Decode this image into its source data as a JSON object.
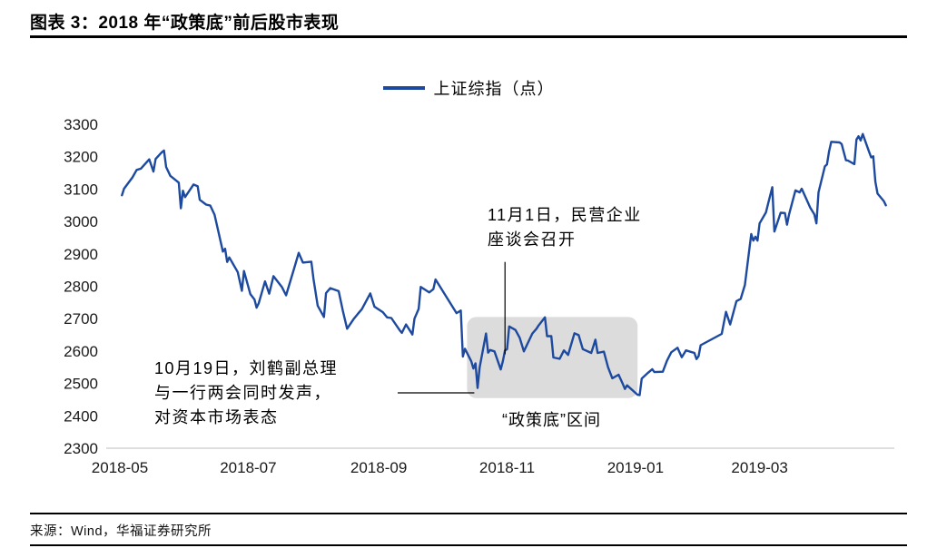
{
  "header": {
    "title": "图表 3：2018 年“政策底”前后股市表现"
  },
  "chart": {
    "legend": "上证综指（点）"
  },
  "annotations": {
    "nov1": "11月1日，民营企业\n座谈会召开",
    "oct19": "10月19日，刘鹤副总理\n与一行两会同时发声，\n对资本市场表态",
    "region_label": "“政策底”区间"
  },
  "footer": {
    "source": "来源：Wind，华福证券研究所"
  },
  "chart_data": {
    "type": "line",
    "title": "图表 3：2018 年“政策底”前后股市表现",
    "series_name": "上证综指（点）",
    "line_color": "#1d4a9f",
    "ylim": [
      2300,
      3300
    ],
    "yticks": [
      3300,
      3200,
      3100,
      3000,
      2900,
      2800,
      2700,
      2600,
      2500,
      2400,
      2300
    ],
    "xticks": [
      "2018-05",
      "2018-07",
      "2018-09",
      "2018-11",
      "2019-01",
      "2019-03"
    ],
    "x_domain": [
      "2018-04-28",
      "2019-05-04"
    ],
    "grid": false,
    "legend_position": "top-center",
    "highlight_region": {
      "x_start": "2018-10-13",
      "x_end": "2019-01-02",
      "y_bottom": 2455,
      "y_top": 2705,
      "color": "#dcdcdc",
      "label": "“政策底”区间"
    },
    "connectors": {
      "nov1": {
        "x_date": "2018-10-31",
        "y_from": 2875,
        "y_to": 2590
      },
      "oct19": {
        "y_value": 2471
      }
    },
    "points": [
      [
        "2018-05-02",
        3081
      ],
      [
        "2018-05-03",
        3101
      ],
      [
        "2018-05-07",
        3136
      ],
      [
        "2018-05-09",
        3159
      ],
      [
        "2018-05-11",
        3163
      ],
      [
        "2018-05-15",
        3192
      ],
      [
        "2018-05-17",
        3154
      ],
      [
        "2018-05-18",
        3193
      ],
      [
        "2018-05-21",
        3214
      ],
      [
        "2018-05-22",
        3219
      ],
      [
        "2018-05-23",
        3168
      ],
      [
        "2018-05-25",
        3141
      ],
      [
        "2018-05-29",
        3120
      ],
      [
        "2018-05-30",
        3041
      ],
      [
        "2018-05-31",
        3095
      ],
      [
        "2018-06-01",
        3075
      ],
      [
        "2018-06-05",
        3114
      ],
      [
        "2018-06-07",
        3109
      ],
      [
        "2018-06-08",
        3067
      ],
      [
        "2018-06-11",
        3052
      ],
      [
        "2018-06-13",
        3049
      ],
      [
        "2018-06-15",
        3021
      ],
      [
        "2018-06-19",
        2907
      ],
      [
        "2018-06-20",
        2916
      ],
      [
        "2018-06-21",
        2875
      ],
      [
        "2018-06-22",
        2889
      ],
      [
        "2018-06-26",
        2844
      ],
      [
        "2018-06-28",
        2786
      ],
      [
        "2018-06-29",
        2847
      ],
      [
        "2018-07-02",
        2776
      ],
      [
        "2018-07-04",
        2759
      ],
      [
        "2018-07-05",
        2734
      ],
      [
        "2018-07-06",
        2747
      ],
      [
        "2018-07-09",
        2815
      ],
      [
        "2018-07-11",
        2777
      ],
      [
        "2018-07-13",
        2831
      ],
      [
        "2018-07-17",
        2798
      ],
      [
        "2018-07-19",
        2772
      ],
      [
        "2018-07-23",
        2859
      ],
      [
        "2018-07-25",
        2903
      ],
      [
        "2018-07-27",
        2873
      ],
      [
        "2018-07-31",
        2876
      ],
      [
        "2018-08-01",
        2824
      ],
      [
        "2018-08-03",
        2740
      ],
      [
        "2018-08-06",
        2705
      ],
      [
        "2018-08-07",
        2779
      ],
      [
        "2018-08-09",
        2794
      ],
      [
        "2018-08-13",
        2785
      ],
      [
        "2018-08-15",
        2723
      ],
      [
        "2018-08-17",
        2669
      ],
      [
        "2018-08-20",
        2698
      ],
      [
        "2018-08-22",
        2714
      ],
      [
        "2018-08-24",
        2729
      ],
      [
        "2018-08-28",
        2778
      ],
      [
        "2018-08-30",
        2737
      ],
      [
        "2018-09-03",
        2720
      ],
      [
        "2018-09-05",
        2704
      ],
      [
        "2018-09-07",
        2702
      ],
      [
        "2018-09-11",
        2664
      ],
      [
        "2018-09-12",
        2656
      ],
      [
        "2018-09-14",
        2682
      ],
      [
        "2018-09-17",
        2651
      ],
      [
        "2018-09-18",
        2700
      ],
      [
        "2018-09-20",
        2730
      ],
      [
        "2018-09-21",
        2798
      ],
      [
        "2018-09-25",
        2781
      ],
      [
        "2018-09-27",
        2791
      ],
      [
        "2018-09-28",
        2821
      ],
      [
        "2018-10-08",
        2717
      ],
      [
        "2018-10-10",
        2725
      ],
      [
        "2018-10-11",
        2583
      ],
      [
        "2018-10-12",
        2607
      ],
      [
        "2018-10-15",
        2568
      ],
      [
        "2018-10-16",
        2546
      ],
      [
        "2018-10-17",
        2562
      ],
      [
        "2018-10-18",
        2486
      ],
      [
        "2018-10-19",
        2550
      ],
      [
        "2018-10-22",
        2654
      ],
      [
        "2018-10-23",
        2595
      ],
      [
        "2018-10-24",
        2603
      ],
      [
        "2018-10-26",
        2599
      ],
      [
        "2018-10-29",
        2543
      ],
      [
        "2018-10-30",
        2568
      ],
      [
        "2018-10-31",
        2602
      ],
      [
        "2018-11-01",
        2606
      ],
      [
        "2018-11-02",
        2676
      ],
      [
        "2018-11-05",
        2665
      ],
      [
        "2018-11-07",
        2641
      ],
      [
        "2018-11-09",
        2599
      ],
      [
        "2018-11-13",
        2654
      ],
      [
        "2018-11-15",
        2669
      ],
      [
        "2018-11-16",
        2679
      ],
      [
        "2018-11-19",
        2704
      ],
      [
        "2018-11-20",
        2646
      ],
      [
        "2018-11-22",
        2646
      ],
      [
        "2018-11-23",
        2580
      ],
      [
        "2018-11-26",
        2576
      ],
      [
        "2018-11-28",
        2602
      ],
      [
        "2018-11-30",
        2588
      ],
      [
        "2018-12-03",
        2655
      ],
      [
        "2018-12-05",
        2649
      ],
      [
        "2018-12-07",
        2606
      ],
      [
        "2018-12-11",
        2594
      ],
      [
        "2018-12-13",
        2635
      ],
      [
        "2018-12-14",
        2594
      ],
      [
        "2018-12-17",
        2598
      ],
      [
        "2018-12-19",
        2550
      ],
      [
        "2018-12-21",
        2516
      ],
      [
        "2018-12-24",
        2527
      ],
      [
        "2018-12-26",
        2498
      ],
      [
        "2018-12-27",
        2483
      ],
      [
        "2018-12-28",
        2494
      ],
      [
        "2019-01-02",
        2465
      ],
      [
        "2019-01-03",
        2464
      ],
      [
        "2019-01-04",
        2515
      ],
      [
        "2019-01-07",
        2533
      ],
      [
        "2019-01-09",
        2544
      ],
      [
        "2019-01-10",
        2535
      ],
      [
        "2019-01-14",
        2536
      ],
      [
        "2019-01-16",
        2570
      ],
      [
        "2019-01-18",
        2596
      ],
      [
        "2019-01-21",
        2610
      ],
      [
        "2019-01-23",
        2581
      ],
      [
        "2019-01-25",
        2602
      ],
      [
        "2019-01-29",
        2594
      ],
      [
        "2019-01-30",
        2575
      ],
      [
        "2019-01-31",
        2584
      ],
      [
        "2019-02-01",
        2618
      ],
      [
        "2019-02-11",
        2653
      ],
      [
        "2019-02-13",
        2721
      ],
      [
        "2019-02-15",
        2682
      ],
      [
        "2019-02-18",
        2754
      ],
      [
        "2019-02-20",
        2761
      ],
      [
        "2019-02-22",
        2804
      ],
      [
        "2019-02-25",
        2961
      ],
      [
        "2019-02-26",
        2941
      ],
      [
        "2019-02-27",
        2953
      ],
      [
        "2019-02-28",
        2941
      ],
      [
        "2019-03-01",
        2994
      ],
      [
        "2019-03-04",
        3028
      ],
      [
        "2019-03-05",
        3054
      ],
      [
        "2019-03-07",
        3106
      ],
      [
        "2019-03-08",
        2969
      ],
      [
        "2019-03-11",
        3027
      ],
      [
        "2019-03-13",
        3026
      ],
      [
        "2019-03-14",
        2990
      ],
      [
        "2019-03-15",
        3022
      ],
      [
        "2019-03-18",
        3096
      ],
      [
        "2019-03-20",
        3090
      ],
      [
        "2019-03-21",
        3101
      ],
      [
        "2019-03-25",
        3043
      ],
      [
        "2019-03-27",
        3022
      ],
      [
        "2019-03-28",
        2994
      ],
      [
        "2019-03-29",
        3090
      ],
      [
        "2019-04-01",
        3170
      ],
      [
        "2019-04-02",
        3176
      ],
      [
        "2019-04-03",
        3216
      ],
      [
        "2019-04-04",
        3246
      ],
      [
        "2019-04-08",
        3244
      ],
      [
        "2019-04-09",
        3239
      ],
      [
        "2019-04-11",
        3189
      ],
      [
        "2019-04-12",
        3188
      ],
      [
        "2019-04-15",
        3177
      ],
      [
        "2019-04-16",
        3253
      ],
      [
        "2019-04-17",
        3263
      ],
      [
        "2019-04-18",
        3250
      ],
      [
        "2019-04-19",
        3270
      ],
      [
        "2019-04-22",
        3215
      ],
      [
        "2019-04-23",
        3198
      ],
      [
        "2019-04-24",
        3201
      ],
      [
        "2019-04-25",
        3123
      ],
      [
        "2019-04-26",
        3086
      ],
      [
        "2019-04-29",
        3063
      ],
      [
        "2019-04-30",
        3050
      ]
    ]
  }
}
